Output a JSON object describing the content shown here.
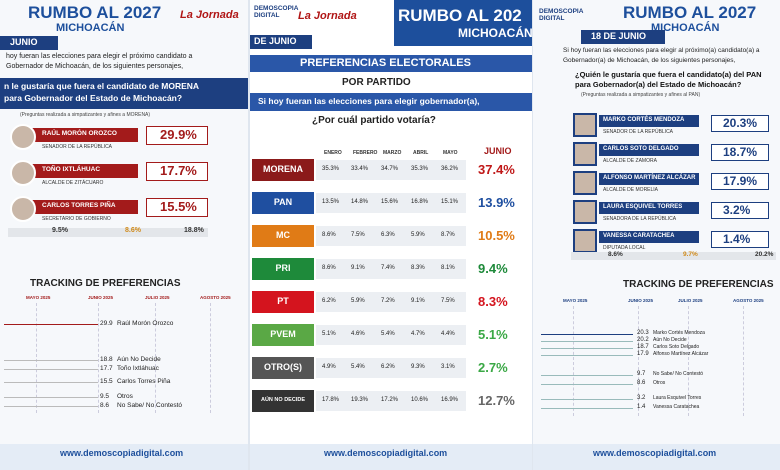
{
  "left": {
    "title": "RUMBO AL 2027",
    "subtitle": "MICHOACÁN",
    "brand": "La Jornada",
    "date": "JUNIO",
    "intro": [
      "hoy fueran las elecciones para elegir el próximo candidato a",
      "Gobernador de Michoacán, de los siguientes personajes,"
    ],
    "question": [
      "n le gustaría que fuera el candidato de MORENA",
      "para Gobernador del Estado de Michoacán?"
    ],
    "note": "(Preguntas realizada a simpatizantes y afines a MORENA)",
    "candidates": [
      {
        "name": "RAÚL MORÓN OROZCO",
        "role": "SENADOR DE LA REPÚBLICA",
        "pct": "29.9%"
      },
      {
        "name": "TOÑO IXTLÁHUAC",
        "role": "ALCALDE DE ZITÁCUARO",
        "pct": "17.7%"
      },
      {
        "name": "CARLOS TORRES PIÑA",
        "role": "SECRETARIO DE GOBIERNO",
        "pct": "15.5%"
      }
    ],
    "others": [
      "9.5%",
      "8.6%",
      "18.8%"
    ],
    "tracking_title": "TRACKING DE PREFERENCIAS",
    "months": [
      "MAYO 2025",
      "JUNIO 2025",
      "JULIO 2025",
      "AGOSTO 2025"
    ],
    "tracking": [
      {
        "value": "29.9",
        "label": "Raúl Morón Orozco"
      },
      {
        "value": "18.8",
        "label": "Aún No Decide"
      },
      {
        "value": "17.7",
        "label": "Toño Ixtláhuac"
      },
      {
        "value": "15.5",
        "label": "Carlos Torres Piña"
      },
      {
        "value": "9.5",
        "label": "Otros"
      },
      {
        "value": "8.6",
        "label": "No Sabe/ No Contestó"
      }
    ],
    "footer": "www.demoscopiadigital.com"
  },
  "middle": {
    "logo": "DEMOSCOPIA DIGITAL",
    "brand": "La Jornada",
    "title": "RUMBO AL 202",
    "subtitle": "MICHOACÁN",
    "date": "DE JUNIO",
    "section": "PREFERENCIAS ELECTORALES",
    "subsection": "POR PARTIDO",
    "question": "Si hoy fueran las elecciones para elegir gobernador(a),",
    "question2": "¿Por cuál partido votaría?",
    "columns": [
      "ENERO",
      "FEBRERO",
      "MARZO",
      "ABRIL",
      "MAYO",
      "JUNIO"
    ],
    "rows": [
      {
        "party": "MORENA",
        "values": [
          "35.3%",
          "33.4%",
          "34.7%",
          "35.3%",
          "36.2%",
          "37.4%"
        ]
      },
      {
        "party": "PAN",
        "values": [
          "13.5%",
          "14.8%",
          "15.6%",
          "16.8%",
          "15.1%",
          "13.9%"
        ]
      },
      {
        "party": "MC",
        "values": [
          "8.6%",
          "7.5%",
          "6.3%",
          "5.9%",
          "8.7%",
          "10.5%"
        ]
      },
      {
        "party": "PRI",
        "values": [
          "8.6%",
          "9.1%",
          "7.4%",
          "8.3%",
          "8.1%",
          "9.4%"
        ]
      },
      {
        "party": "PT",
        "values": [
          "6.2%",
          "5.9%",
          "7.2%",
          "9.1%",
          "7.5%",
          "8.3%"
        ]
      },
      {
        "party": "PVEM",
        "values": [
          "5.1%",
          "4.6%",
          "5.4%",
          "4.7%",
          "4.4%",
          "5.1%"
        ]
      },
      {
        "party": "OTRO(S)",
        "values": [
          "4.9%",
          "5.4%",
          "6.2%",
          "9.3%",
          "3.1%",
          "2.7%"
        ]
      },
      {
        "party": "AÚN NO DECIDE",
        "values": [
          "17.8%",
          "19.3%",
          "17.2%",
          "10.6%",
          "16.9%",
          "12.7%"
        ]
      }
    ],
    "footer": "www.demoscopiadigital.com"
  },
  "right": {
    "logo": "DEMOSCOPIA DIGITAL",
    "title": "RUMBO AL 2027",
    "subtitle": "MICHOACÁN",
    "date": "18 DE JUNIO",
    "intro": [
      "Si hoy fueran las elecciones para elegir al próximo(a) candidato(a) a",
      "Gobernador(a) de Michoacán, de los siguientes personajes,"
    ],
    "question": [
      "¿Quién le gustaría que fuera el candidato(a) del PAN",
      "para Gobernador(a) del Estado de Michoacán?"
    ],
    "note": "(Preguntas realizada a simpatizantes y afines al PAN)",
    "candidates": [
      {
        "name": "MARKO CORTÉS MENDOZA",
        "role": "SENADOR DE LA REPÚBLICA",
        "pct": "20.3%"
      },
      {
        "name": "CARLOS SOTO DELGADO",
        "role": "ALCALDE DE ZAMORA",
        "pct": "18.7%"
      },
      {
        "name": "ALFONSO MARTÍNEZ ALCÁZAR",
        "role": "ALCALDE DE MORELIA",
        "pct": "17.9%"
      },
      {
        "name": "LAURA ESQUIVEL TORRES",
        "role": "SENADORA DE LA REPÚBLICA",
        "pct": "3.2%"
      },
      {
        "name": "VANESSA CARATACHEA",
        "role": "DIPUTADA LOCAL",
        "pct": "1.4%"
      }
    ],
    "others": [
      "8.6%",
      "9.7%",
      "20.2%"
    ],
    "tracking_title": "TRACKING DE PREFERENCIAS",
    "months": [
      "MAYO 2025",
      "JUNIO 2025",
      "JULIO 2025",
      "AGOSTO 2025"
    ],
    "tracking": [
      {
        "value": "20.3",
        "label": "Marko Cortés Mendoza"
      },
      {
        "value": "20.2",
        "label": "Aún No Decide"
      },
      {
        "value": "18.7",
        "label": "Carlos Soto Delgado"
      },
      {
        "value": "17.9",
        "label": "Alfonso Martínez Alcázar"
      },
      {
        "value": "9.7",
        "label": "No Sabe/ No Contestó"
      },
      {
        "value": "8.6",
        "label": "Otros"
      },
      {
        "value": "3.2",
        "label": "Laura Esquivel Torres"
      },
      {
        "value": "1.4",
        "label": "Vanessa Caratachea"
      }
    ],
    "footer": "www.demoscopiadigital.com"
  }
}
